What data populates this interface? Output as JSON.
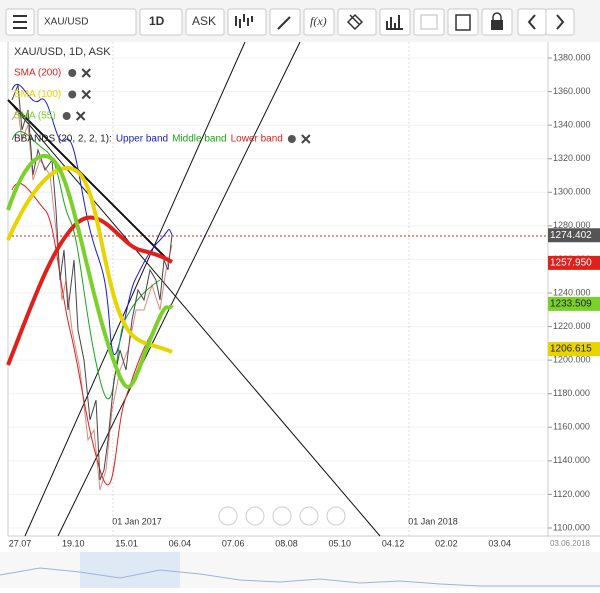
{
  "toolbar": {
    "symbol": "XAU/USD",
    "interval": "1D",
    "price_type": "ASK",
    "formula": "f(x)"
  },
  "chart": {
    "header": "XAU/USD, 1D, ASK",
    "indicators": [
      {
        "name": "SMA (200)",
        "color": "#e0201b"
      },
      {
        "name": "SMA (100)",
        "color": "#e8d400"
      },
      {
        "name": "SMA (55)",
        "color": "#7ad12a"
      }
    ],
    "bbands": {
      "name": "BBANDS (20, 2, 2, 1):",
      "bands": [
        {
          "name": "Upper band",
          "color": "#1a1ad6"
        },
        {
          "name": "Middle band",
          "color": "#17a817"
        },
        {
          "name": "Lower band",
          "color": "#e0201b"
        }
      ]
    },
    "ylim": [
      1100,
      1380
    ],
    "yticks": [
      {
        "value": 1380,
        "label": "1380.000"
      },
      {
        "value": 1360,
        "label": "1360.000"
      },
      {
        "value": 1340,
        "label": "1340.000"
      },
      {
        "value": 1320,
        "label": "1320.000"
      },
      {
        "value": 1300,
        "label": "1300.000"
      },
      {
        "value": 1280,
        "label": "1280.000"
      },
      {
        "value": 1260,
        "label": "1260.000"
      },
      {
        "value": 1240,
        "label": "1240.000"
      },
      {
        "value": 1220,
        "label": "1220.000"
      },
      {
        "value": 1200,
        "label": "1200.000"
      },
      {
        "value": 1180,
        "label": "1180.000"
      },
      {
        "value": 1160,
        "label": "1160.000"
      },
      {
        "value": 1140,
        "label": "1140.000"
      },
      {
        "value": 1120,
        "label": "1120.000"
      },
      {
        "value": 1100,
        "label": "1100.000"
      }
    ],
    "price_tags": [
      {
        "value": 1274.402,
        "label": "1274.402",
        "color": "#555555"
      },
      {
        "value": 1257.95,
        "label": "1257.950",
        "color": "#e0201b"
      },
      {
        "value": 1233.509,
        "label": "1233.509",
        "color": "#7ad12a"
      },
      {
        "value": 1206.615,
        "label": "1206.615",
        "color": "#e8d400"
      }
    ],
    "xlabels": [
      "27.07",
      "19.10",
      "15.01",
      "06.04",
      "07.06",
      "08.08",
      "05.10",
      "04.12",
      "02.02",
      "03.04"
    ],
    "end_date": "03.06.2018",
    "year_marks": [
      "01 Jan 2017",
      "01 Jan 2018"
    ]
  }
}
